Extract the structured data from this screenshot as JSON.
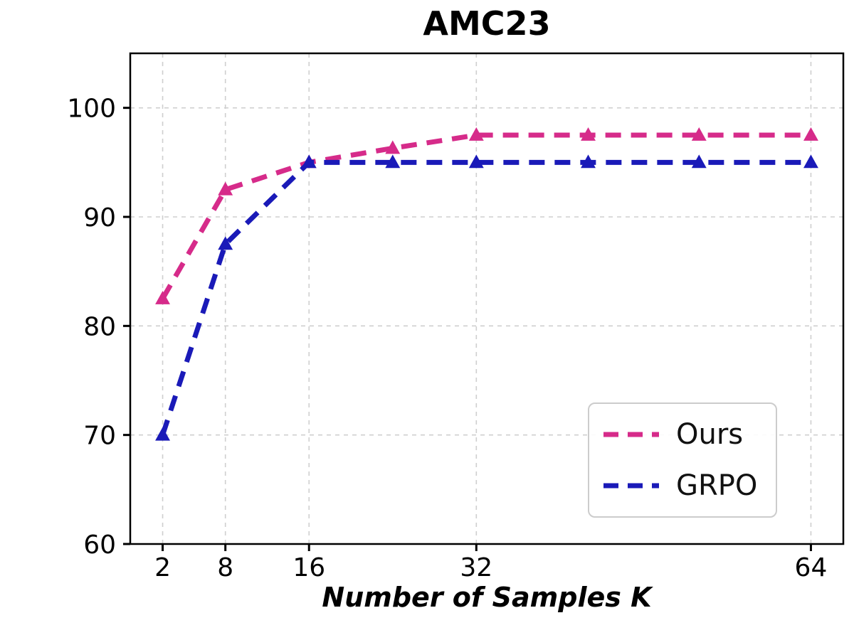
{
  "chart_data": {
    "type": "line",
    "title": "AMC23",
    "xlabel": "Number of Samples K",
    "ylabel": "",
    "x_ticks": [
      2,
      8,
      16,
      32,
      64
    ],
    "y_ticks": [
      60,
      70,
      80,
      90,
      100
    ],
    "xlim": [
      -1.1,
      67.1
    ],
    "ylim": [
      60,
      105
    ],
    "grid": true,
    "grid_style": "dashed",
    "legend_position": "lower right",
    "x": [
      2,
      8,
      16,
      24,
      32,
      42.7,
      53.3,
      64
    ],
    "series": [
      {
        "name": "Ours",
        "color": "#D62B8A",
        "marker": "triangle-up",
        "line_style": "dashed",
        "values": [
          82.5,
          92.5,
          95.0,
          96.3,
          97.5,
          97.5,
          97.5,
          97.5
        ]
      },
      {
        "name": "GRPO",
        "color": "#1A1AB8",
        "marker": "triangle-up",
        "line_style": "dashed",
        "values": [
          70.0,
          87.5,
          95.0,
          95.0,
          95.0,
          95.0,
          95.0,
          95.0
        ]
      }
    ]
  }
}
